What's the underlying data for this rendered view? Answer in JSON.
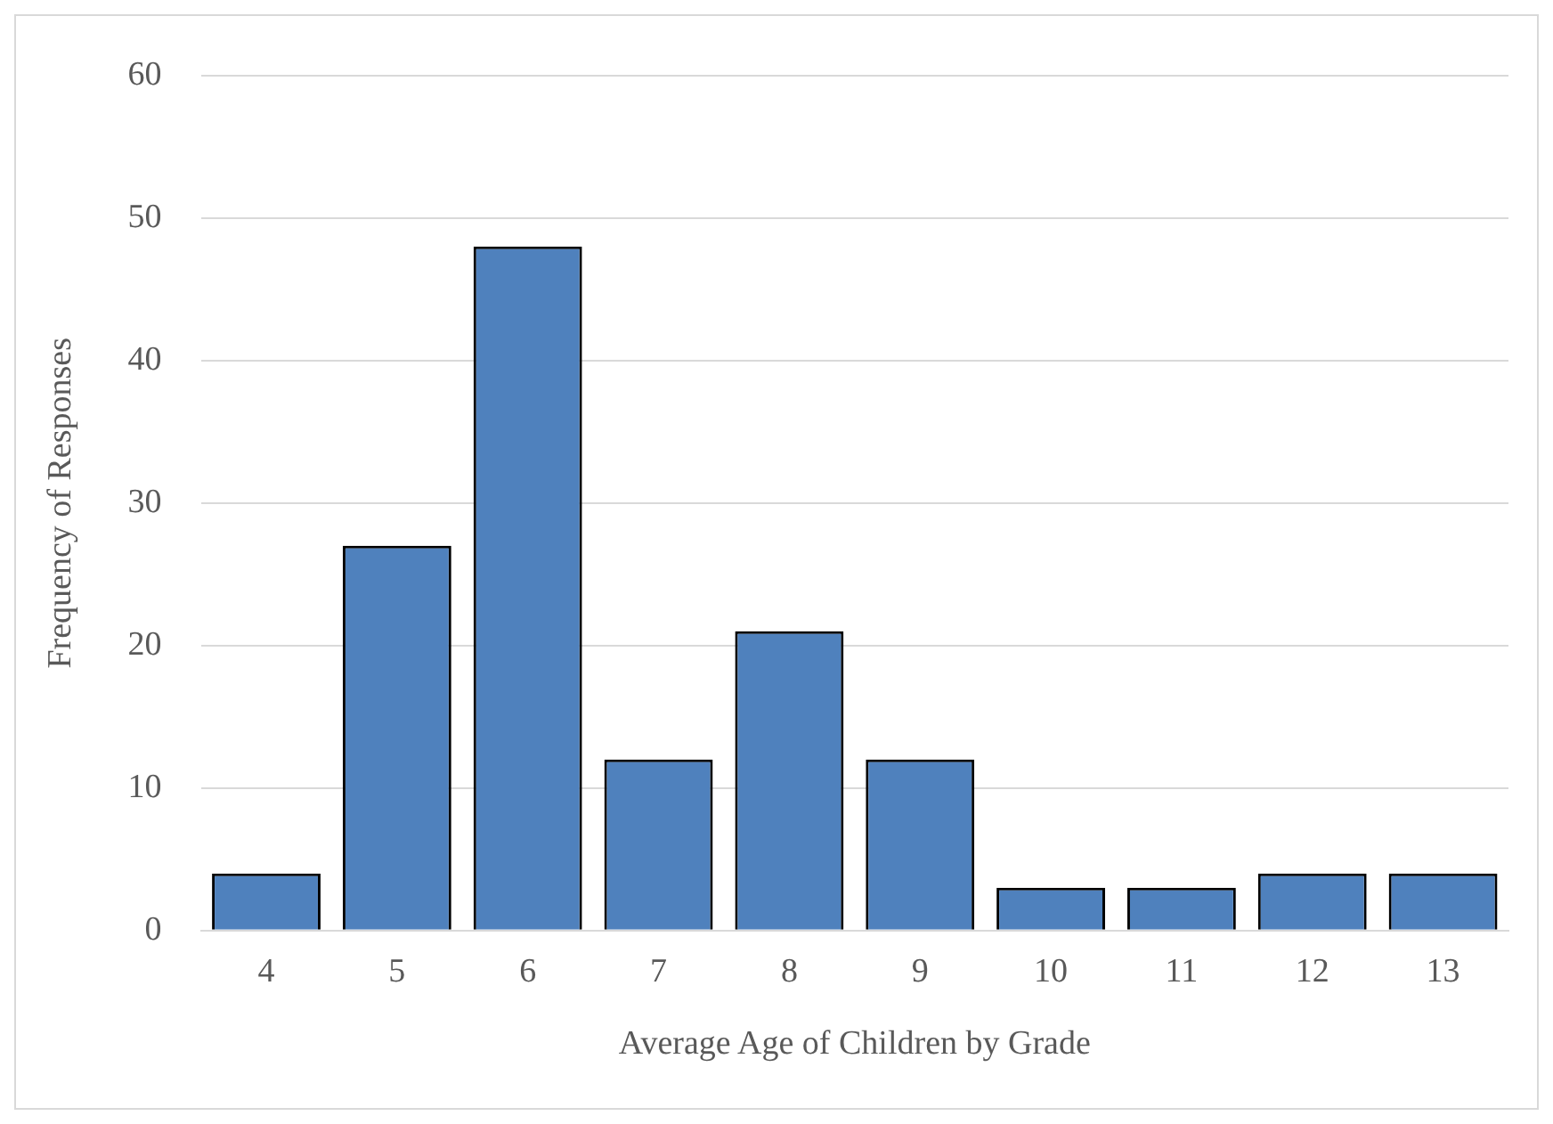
{
  "chart_data": {
    "type": "bar",
    "xlabel": "Average Age of Children by Grade",
    "ylabel": "Frequency of Responses",
    "categories": [
      "4",
      "5",
      "6",
      "7",
      "8",
      "9",
      "10",
      "11",
      "12",
      "13"
    ],
    "values": [
      4,
      27,
      48,
      12,
      21,
      12,
      3,
      3,
      4,
      4
    ],
    "color": "#4f81bd",
    "ylim": [
      0,
      60
    ],
    "yticks": [
      0,
      10,
      20,
      30,
      40,
      50,
      60
    ],
    "grid": "y",
    "legend": false
  }
}
